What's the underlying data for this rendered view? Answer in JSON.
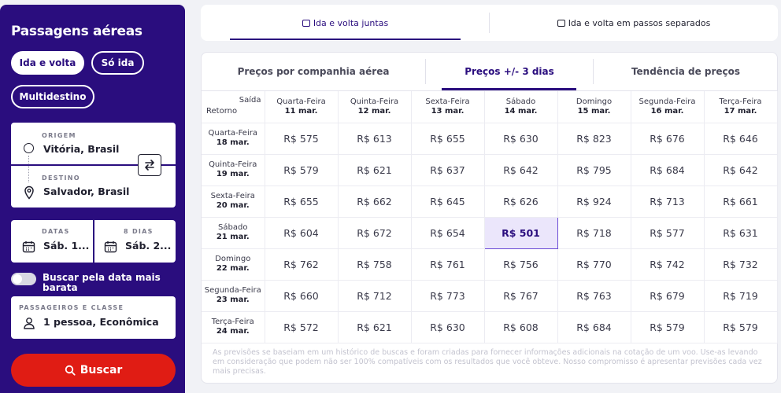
{
  "sidebar": {
    "title": "Passagens aéreas",
    "trip_types": [
      "Ida e volta",
      "Só ida",
      "Multidestino"
    ],
    "origin_label": "ORIGEM",
    "origin_value": "Vitória, Brasil",
    "destination_label": "DESTINO",
    "destination_value": "Salvador, Brasil",
    "dates_label": "DATAS",
    "dates_value": "Sáb. 1...",
    "days_label": "8 DIAS",
    "days_value": "Sáb. 2...",
    "cheapest_toggle_label": "Buscar pela data mais barata",
    "pax_label": "PASSAGEIROS E CLASSE",
    "pax_value": "1 pessoa, Econômica",
    "search_label": "Buscar"
  },
  "top_tabs": [
    "Ida e volta juntas",
    "Ida e volta em passos separados"
  ],
  "sub_tabs": [
    "Preços por companhia aérea",
    "Preços +/- 3 dias",
    "Tendência de preços"
  ],
  "grid": {
    "corner_departure": "Saída",
    "corner_return": "Retorno",
    "departures": [
      {
        "day": "Quarta-Feira",
        "date": "11 mar."
      },
      {
        "day": "Quinta-Feira",
        "date": "12 mar."
      },
      {
        "day": "Sexta-Feira",
        "date": "13 mar."
      },
      {
        "day": "Sábado",
        "date": "14 mar."
      },
      {
        "day": "Domingo",
        "date": "15 mar."
      },
      {
        "day": "Segunda-Feira",
        "date": "16 mar."
      },
      {
        "day": "Terça-Feira",
        "date": "17 mar."
      }
    ],
    "returns": [
      {
        "day": "Quarta-Feira",
        "date": "18 mar.",
        "prices": [
          "R$ 575",
          "R$ 613",
          "R$ 655",
          "R$ 630",
          "R$ 823",
          "R$ 676",
          "R$ 646"
        ]
      },
      {
        "day": "Quinta-Feira",
        "date": "19 mar.",
        "prices": [
          "R$ 579",
          "R$ 621",
          "R$ 637",
          "R$ 642",
          "R$ 795",
          "R$ 684",
          "R$ 642"
        ]
      },
      {
        "day": "Sexta-Feira",
        "date": "20 mar.",
        "prices": [
          "R$ 655",
          "R$ 662",
          "R$ 645",
          "R$ 626",
          "R$ 924",
          "R$ 713",
          "R$ 661"
        ]
      },
      {
        "day": "Sábado",
        "date": "21 mar.",
        "prices": [
          "R$ 604",
          "R$ 672",
          "R$ 654",
          "R$ 501",
          "R$ 718",
          "R$ 577",
          "R$ 631"
        ]
      },
      {
        "day": "Domingo",
        "date": "22 mar.",
        "prices": [
          "R$ 762",
          "R$ 758",
          "R$ 761",
          "R$ 756",
          "R$ 770",
          "R$ 742",
          "R$ 732"
        ]
      },
      {
        "day": "Segunda-Feira",
        "date": "23 mar.",
        "prices": [
          "R$ 660",
          "R$ 712",
          "R$ 773",
          "R$ 767",
          "R$ 763",
          "R$ 679",
          "R$ 719"
        ]
      },
      {
        "day": "Terça-Feira",
        "date": "24 mar.",
        "prices": [
          "R$ 572",
          "R$ 621",
          "R$ 630",
          "R$ 608",
          "R$ 684",
          "R$ 579",
          "R$ 579"
        ]
      }
    ],
    "best_price": "R$ 501"
  },
  "disclaimer": "As previsões se baseiam em um histórico de buscas e foram criadas para fornecer informações adicionais na cotação de um voo. Use-as levando em consideração que podem não ser 100% compatíveis com os resultados que você obteve. Nosso compromisso é apresentar previsões cada vez mais precisas.",
  "colors": {
    "brand": "#2a0d7e",
    "search": "#e01c14",
    "highlight": "#ebe6fb"
  }
}
